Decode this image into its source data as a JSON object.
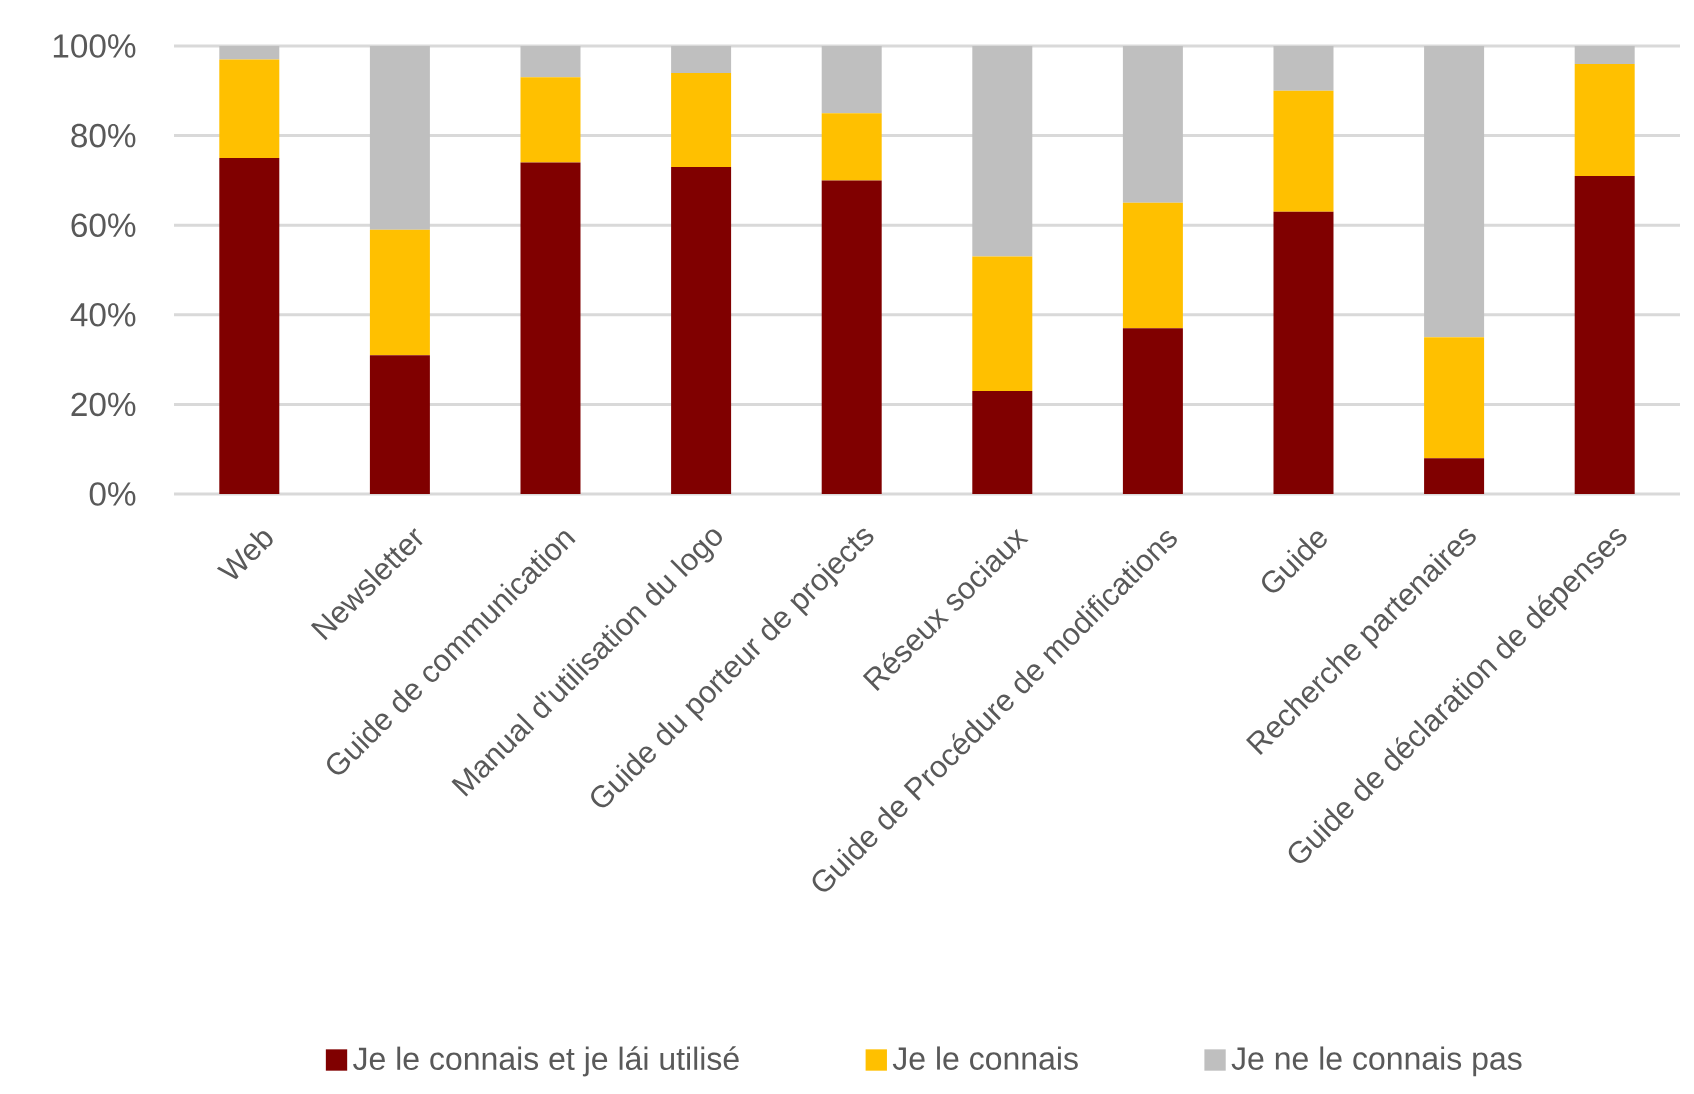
{
  "chart_data": {
    "type": "bar",
    "stacked": true,
    "categories": [
      "Web",
      "Newsletter",
      "Guide de communication",
      "Manual d'utilisation du logo",
      "Guide du porteur de projects",
      "Réseux sociaux",
      "Guide de Procédure de modifications",
      "Guide",
      "Recherche partenaires",
      "Guide de déclaration de dépenses"
    ],
    "series": [
      {
        "name": "Je le connais et je lái utilisé",
        "color": "#800000",
        "values": [
          75,
          31,
          74,
          73,
          70,
          23,
          37,
          63,
          8,
          71
        ]
      },
      {
        "name": "Je le connais",
        "color": "#ffc000",
        "values": [
          22,
          28,
          19,
          21,
          15,
          30,
          28,
          27,
          27,
          25
        ]
      },
      {
        "name": "Je ne le connais pas",
        "color": "#bfbfbf",
        "values": [
          3,
          41,
          7,
          6,
          15,
          47,
          35,
          10,
          65,
          4
        ]
      }
    ],
    "ylim": [
      0,
      100
    ],
    "yticks": [
      {
        "value": 0,
        "label": "0%"
      },
      {
        "value": 20,
        "label": "20%"
      },
      {
        "value": 40,
        "label": "40%"
      },
      {
        "value": 60,
        "label": "60%"
      },
      {
        "value": 80,
        "label": "80%"
      },
      {
        "value": 100,
        "label": "100%"
      }
    ],
    "grid": "y",
    "legend": "bottom"
  }
}
